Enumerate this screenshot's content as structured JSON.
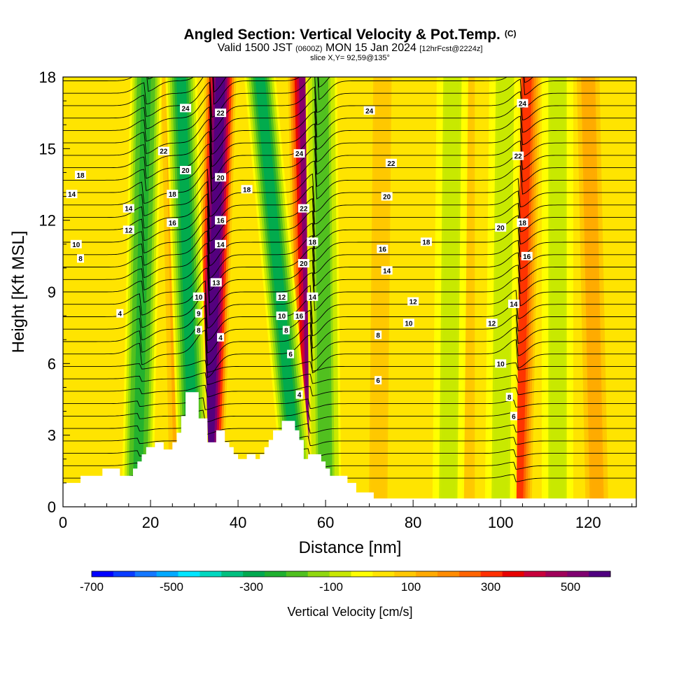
{
  "header": {
    "title": "Angled Section: Vertical Velocity & Pot.Temp.",
    "copyright": "(C)",
    "valid_prefix": "Valid 1500 JST",
    "zulu": "(0600Z)",
    "valid_date": "MON 15 Jan 2024",
    "forecast": "[12hrFcst@2224z]",
    "slice": "slice X,Y= 92,59@135°"
  },
  "chart_data": {
    "type": "heatmap",
    "title": "Angled Section: Vertical Velocity & Pot.Temp.",
    "xlabel": "Distance [nm]",
    "ylabel": "Height [Kft MSL]",
    "xlim": [
      0,
      131
    ],
    "ylim": [
      0,
      18
    ],
    "x_ticks": [
      0,
      20,
      40,
      60,
      80,
      100,
      120
    ],
    "y_ticks": [
      0,
      3,
      6,
      9,
      12,
      15,
      18
    ],
    "colorbar": {
      "title": "Vertical Velocity [cm/s]",
      "ticks": [
        -700,
        -500,
        -300,
        -100,
        100,
        300,
        500
      ],
      "range": [
        -700,
        600
      ],
      "colors": [
        "#0000ff",
        "#0a3cff",
        "#1478ff",
        "#00aaff",
        "#00e6ff",
        "#00d8c0",
        "#00c080",
        "#00aa50",
        "#20b030",
        "#50c020",
        "#90d810",
        "#c8e800",
        "#ffff00",
        "#ffe400",
        "#ffc800",
        "#ffaa00",
        "#ff8c00",
        "#ff6400",
        "#ff3000",
        "#e80000",
        "#c8003c",
        "#a0005a",
        "#800070",
        "#500080"
      ]
    },
    "updrafts": [
      {
        "x_bottom": 33,
        "x_top": 36,
        "peak": 600
      },
      {
        "x_bottom": 57,
        "x_top": 55,
        "peak": 500
      },
      {
        "x_bottom": 104,
        "x_top": 106,
        "peak": 300
      },
      {
        "x_bottom": 27,
        "x_top": 25,
        "peak": 150
      },
      {
        "x_bottom": 122,
        "x_top": 120,
        "peak": 150
      },
      {
        "x_bottom": 92,
        "x_top": 92,
        "peak": 100
      },
      {
        "x_bottom": 72,
        "x_top": 73,
        "peak": 100
      }
    ],
    "downdrafts": [
      {
        "x_bottom": 30,
        "x_top": 27,
        "peak": -300
      },
      {
        "x_bottom": 54,
        "x_top": 45,
        "peak": -300
      },
      {
        "x_bottom": 17,
        "x_top": 19,
        "peak": -250
      },
      {
        "x_bottom": 60,
        "x_top": 59,
        "peak": -200
      },
      {
        "x_bottom": 100,
        "x_top": 101,
        "peak": -100
      },
      {
        "x_bottom": 88,
        "x_top": 89,
        "peak": -100
      },
      {
        "x_bottom": 113,
        "x_top": 113,
        "peak": -80
      }
    ],
    "terrain": [
      [
        0,
        1.0
      ],
      [
        4,
        1.0
      ],
      [
        4,
        1.3
      ],
      [
        9,
        1.3
      ],
      [
        9,
        1.6
      ],
      [
        13,
        1.6
      ],
      [
        13,
        1.3
      ],
      [
        16,
        1.3
      ],
      [
        16,
        1.6
      ],
      [
        17,
        1.6
      ],
      [
        17,
        1.9
      ],
      [
        18,
        1.9
      ],
      [
        18,
        2.2
      ],
      [
        19,
        2.2
      ],
      [
        19,
        2.5
      ],
      [
        21,
        2.5
      ],
      [
        21,
        2.7
      ],
      [
        23,
        2.7
      ],
      [
        23,
        2.4
      ],
      [
        25,
        2.4
      ],
      [
        25,
        2.7
      ],
      [
        26,
        2.7
      ],
      [
        26,
        3.1
      ],
      [
        27,
        3.1
      ],
      [
        27,
        3.8
      ],
      [
        28,
        3.8
      ],
      [
        28,
        4.8
      ],
      [
        31,
        4.8
      ],
      [
        31,
        3.7
      ],
      [
        33,
        3.7
      ],
      [
        33,
        2.7
      ],
      [
        35,
        2.7
      ],
      [
        35,
        3.2
      ],
      [
        37,
        3.2
      ],
      [
        37,
        2.7
      ],
      [
        38,
        2.7
      ],
      [
        38,
        2.5
      ],
      [
        39,
        2.5
      ],
      [
        39,
        2.2
      ],
      [
        40,
        2.2
      ],
      [
        40,
        2.0
      ],
      [
        42,
        2.0
      ],
      [
        42,
        2.2
      ],
      [
        44,
        2.2
      ],
      [
        44,
        2.0
      ],
      [
        45,
        2.0
      ],
      [
        45,
        2.2
      ],
      [
        46,
        2.2
      ],
      [
        46,
        2.5
      ],
      [
        47,
        2.5
      ],
      [
        47,
        2.8
      ],
      [
        48,
        2.8
      ],
      [
        48,
        3.2
      ],
      [
        50,
        3.2
      ],
      [
        50,
        3.6
      ],
      [
        53,
        3.6
      ],
      [
        53,
        3.2
      ],
      [
        54,
        3.2
      ],
      [
        54,
        2.8
      ],
      [
        55,
        2.8
      ],
      [
        55,
        2.0
      ],
      [
        56,
        2.0
      ],
      [
        56,
        2.2
      ],
      [
        59,
        2.2
      ],
      [
        59,
        1.9
      ],
      [
        60,
        1.9
      ],
      [
        60,
        1.6
      ],
      [
        61,
        1.6
      ],
      [
        61,
        1.3
      ],
      [
        65,
        1.3
      ],
      [
        65,
        1.0
      ],
      [
        67,
        1.0
      ],
      [
        67,
        0.6
      ],
      [
        71,
        0.6
      ],
      [
        71,
        0.35
      ],
      [
        131,
        0.35
      ]
    ],
    "theta_contour_labels": [
      {
        "label": "24",
        "x": 28,
        "y": 16.7
      },
      {
        "label": "22",
        "x": 36,
        "y": 16.5
      },
      {
        "label": "22",
        "x": 23,
        "y": 14.9
      },
      {
        "label": "20",
        "x": 28,
        "y": 14.1
      },
      {
        "label": "20",
        "x": 36,
        "y": 13.8
      },
      {
        "label": "18",
        "x": 4,
        "y": 13.9
      },
      {
        "label": "18",
        "x": 25,
        "y": 13.1
      },
      {
        "label": "18",
        "x": 42,
        "y": 13.3
      },
      {
        "label": "16",
        "x": 25,
        "y": 11.9
      },
      {
        "label": "16",
        "x": 36,
        "y": 12.0
      },
      {
        "label": "14",
        "x": 2,
        "y": 13.1
      },
      {
        "label": "14",
        "x": 15,
        "y": 12.5
      },
      {
        "label": "14",
        "x": 36,
        "y": 11.0
      },
      {
        "label": "12",
        "x": 15,
        "y": 11.6
      },
      {
        "label": "13",
        "x": 35,
        "y": 9.4
      },
      {
        "label": "10",
        "x": 3,
        "y": 11.0
      },
      {
        "label": "10",
        "x": 31,
        "y": 8.8
      },
      {
        "label": "9",
        "x": 31,
        "y": 8.1
      },
      {
        "label": "8",
        "x": 4,
        "y": 10.4
      },
      {
        "label": "8",
        "x": 31,
        "y": 7.4
      },
      {
        "label": "4",
        "x": 13,
        "y": 8.1
      },
      {
        "label": "4",
        "x": 36,
        "y": 7.1
      },
      {
        "label": "24",
        "x": 54,
        "y": 14.8
      },
      {
        "label": "22",
        "x": 55,
        "y": 12.5
      },
      {
        "label": "18",
        "x": 57,
        "y": 11.1
      },
      {
        "label": "20",
        "x": 55,
        "y": 10.2
      },
      {
        "label": "12",
        "x": 50,
        "y": 8.8
      },
      {
        "label": "14",
        "x": 57,
        "y": 8.8
      },
      {
        "label": "10",
        "x": 50,
        "y": 8.0
      },
      {
        "label": "16",
        "x": 54,
        "y": 8.0
      },
      {
        "label": "8",
        "x": 51,
        "y": 7.4
      },
      {
        "label": "6",
        "x": 52,
        "y": 6.4
      },
      {
        "label": "4",
        "x": 54,
        "y": 4.7
      },
      {
        "label": "24",
        "x": 70,
        "y": 16.6
      },
      {
        "label": "22",
        "x": 75,
        "y": 14.4
      },
      {
        "label": "20",
        "x": 74,
        "y": 13.0
      },
      {
        "label": "18",
        "x": 83,
        "y": 11.1
      },
      {
        "label": "16",
        "x": 73,
        "y": 10.8
      },
      {
        "label": "14",
        "x": 74,
        "y": 9.9
      },
      {
        "label": "12",
        "x": 80,
        "y": 8.6
      },
      {
        "label": "10",
        "x": 79,
        "y": 7.7
      },
      {
        "label": "8",
        "x": 72,
        "y": 7.2
      },
      {
        "label": "6",
        "x": 72,
        "y": 5.3
      },
      {
        "label": "24",
        "x": 105,
        "y": 16.9
      },
      {
        "label": "22",
        "x": 104,
        "y": 14.7
      },
      {
        "label": "20",
        "x": 100,
        "y": 11.7
      },
      {
        "label": "18",
        "x": 105,
        "y": 11.9
      },
      {
        "label": "16",
        "x": 106,
        "y": 10.5
      },
      {
        "label": "14",
        "x": 103,
        "y": 8.5
      },
      {
        "label": "12",
        "x": 98,
        "y": 7.7
      },
      {
        "label": "10",
        "x": 100,
        "y": 6.0
      },
      {
        "label": "8",
        "x": 102,
        "y": 4.6
      },
      {
        "label": "6",
        "x": 103,
        "y": 3.8
      }
    ]
  }
}
